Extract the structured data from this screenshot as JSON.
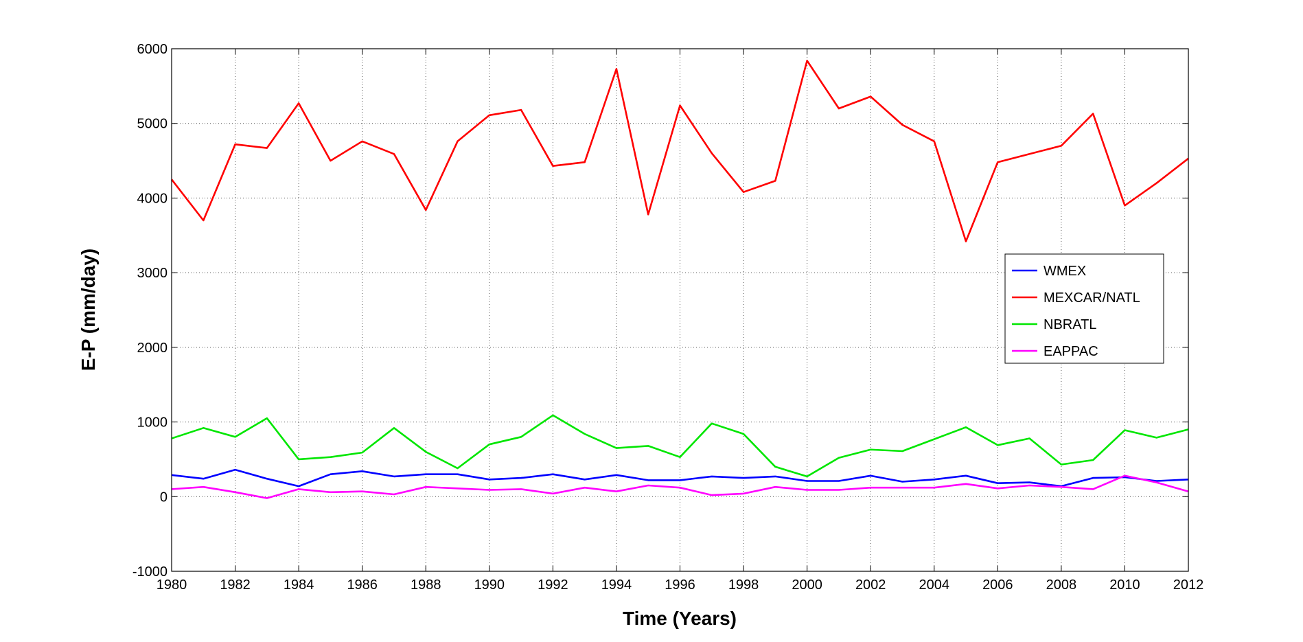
{
  "chart_data": {
    "type": "line",
    "title": "",
    "xlabel": "Time (Years)",
    "ylabel": "E-P (mm/day)",
    "xlim": [
      1980,
      2012
    ],
    "ylim": [
      -1000,
      6000
    ],
    "grid": true,
    "legend_position": "right",
    "xticks": [
      1980,
      1982,
      1984,
      1986,
      1988,
      1990,
      1992,
      1994,
      1996,
      1998,
      2000,
      2002,
      2004,
      2006,
      2008,
      2010,
      2012
    ],
    "yticks": [
      -1000,
      0,
      1000,
      2000,
      3000,
      4000,
      5000,
      6000
    ],
    "x": [
      1980,
      1981,
      1982,
      1983,
      1984,
      1985,
      1986,
      1987,
      1988,
      1989,
      1990,
      1991,
      1992,
      1993,
      1994,
      1995,
      1996,
      1997,
      1998,
      1999,
      2000,
      2001,
      2002,
      2003,
      2004,
      2005,
      2006,
      2007,
      2008,
      2009,
      2010,
      2011,
      2012
    ],
    "series": [
      {
        "name": "WMEX",
        "color": "#0000ff",
        "values": [
          290,
          240,
          360,
          240,
          140,
          300,
          340,
          270,
          300,
          300,
          230,
          250,
          300,
          230,
          290,
          220,
          220,
          270,
          250,
          270,
          210,
          210,
          280,
          200,
          230,
          280,
          180,
          190,
          140,
          250,
          260,
          210,
          230
        ]
      },
      {
        "name": "MEXCAR/NATL",
        "color": "#ff0000",
        "values": [
          4250,
          3700,
          4720,
          4670,
          5270,
          4500,
          4760,
          4590,
          3840,
          4760,
          5110,
          5180,
          4430,
          4480,
          5730,
          3780,
          5240,
          4600,
          4080,
          4230,
          5840,
          5200,
          5360,
          4980,
          4760,
          3420,
          4480,
          4590,
          4700,
          5130,
          3900,
          4200,
          4530
        ]
      },
      {
        "name": "NBRATL",
        "color": "#00e600",
        "values": [
          780,
          920,
          800,
          1050,
          500,
          530,
          590,
          920,
          600,
          380,
          700,
          800,
          1090,
          840,
          650,
          680,
          530,
          980,
          840,
          400,
          270,
          520,
          630,
          610,
          770,
          930,
          690,
          780,
          430,
          490,
          890,
          790,
          900
        ]
      },
      {
        "name": "EAPPAC",
        "color": "#ff00ff",
        "values": [
          100,
          130,
          60,
          -20,
          100,
          60,
          70,
          30,
          130,
          110,
          90,
          100,
          40,
          120,
          70,
          150,
          120,
          20,
          40,
          130,
          90,
          90,
          120,
          120,
          120,
          170,
          110,
          150,
          130,
          100,
          280,
          190,
          70
        ]
      }
    ]
  }
}
